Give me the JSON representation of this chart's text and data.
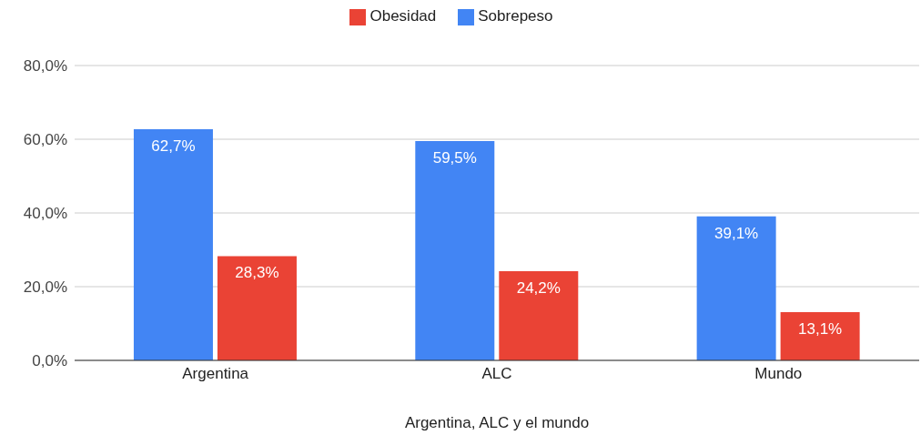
{
  "chart_data": {
    "type": "bar",
    "xlabel": "Argentina, ALC y el mundo",
    "categories": [
      "Argentina",
      "ALC",
      "Mundo"
    ],
    "series": [
      {
        "name": "Sobrepeso",
        "color": "#4285f4",
        "values": [
          62.7,
          59.5,
          39.1
        ],
        "value_labels": [
          "62,7%",
          "59,5%",
          "39,1%"
        ]
      },
      {
        "name": "Obesidad",
        "color": "#ea4335",
        "values": [
          28.3,
          24.2,
          13.1
        ],
        "value_labels": [
          "28,3%",
          "24,2%",
          "13,1%"
        ]
      }
    ],
    "ylim": [
      0,
      80
    ],
    "yticks": [
      {
        "value": 0,
        "label": "0,0%"
      },
      {
        "value": 20,
        "label": "20,0%"
      },
      {
        "value": 40,
        "label": "40,0%"
      },
      {
        "value": 60,
        "label": "60,0%"
      },
      {
        "value": 80,
        "label": "80,0%"
      }
    ],
    "grid": "y",
    "legend": "top"
  }
}
